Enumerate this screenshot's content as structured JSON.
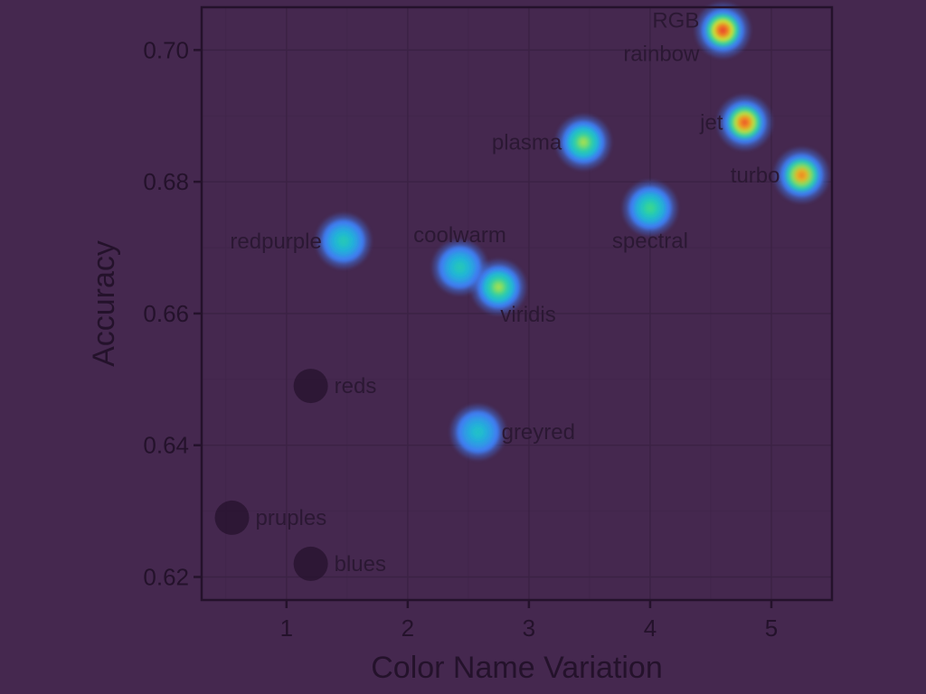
{
  "chart_data": {
    "type": "scatter",
    "xlabel": "Color Name Variation",
    "ylabel": "Accuracy",
    "xlim": [
      0.3,
      5.5
    ],
    "ylim": [
      0.6165,
      0.7065
    ],
    "x_ticks": [
      1,
      2,
      3,
      4,
      5
    ],
    "x_tick_labels": [
      "1",
      "2",
      "3",
      "4",
      "5"
    ],
    "y_ticks": [
      0.62,
      0.64,
      0.66,
      0.68,
      0.7
    ],
    "y_tick_labels": [
      "0.62",
      "0.64",
      "0.66",
      "0.68",
      "0.70"
    ],
    "grid": true,
    "points": [
      {
        "label": "RGB",
        "x": 4.6,
        "y": 0.703,
        "heat": 1.0,
        "label_side": "left-up"
      },
      {
        "label": "rainbow",
        "x": 4.6,
        "y": 0.703,
        "heat": 1.0,
        "label_side": "left-down"
      },
      {
        "label": "jet",
        "x": 4.78,
        "y": 0.689,
        "heat": 0.95,
        "label_side": "left"
      },
      {
        "label": "turbo",
        "x": 5.25,
        "y": 0.681,
        "heat": 0.85,
        "label_side": "left"
      },
      {
        "label": "plasma",
        "x": 3.45,
        "y": 0.686,
        "heat": 0.55,
        "label_side": "left"
      },
      {
        "label": "spectral",
        "x": 4.0,
        "y": 0.676,
        "heat": 0.42,
        "label_side": "below"
      },
      {
        "label": "redpurple",
        "x": 1.47,
        "y": 0.671,
        "heat": 0.3,
        "label_side": "left"
      },
      {
        "label": "coolwarm",
        "x": 2.43,
        "y": 0.667,
        "heat": 0.3,
        "label_side": "above"
      },
      {
        "label": "viridis",
        "x": 2.75,
        "y": 0.664,
        "heat": 0.55,
        "label_side": "below-right"
      },
      {
        "label": "reds",
        "x": 1.2,
        "y": 0.649,
        "heat": 0.0,
        "label_side": "right"
      },
      {
        "label": "greyred",
        "x": 2.58,
        "y": 0.642,
        "heat": 0.25,
        "label_side": "right"
      },
      {
        "label": "pruples",
        "x": 0.55,
        "y": 0.629,
        "heat": 0.0,
        "label_side": "right"
      },
      {
        "label": "blues",
        "x": 1.2,
        "y": 0.622,
        "heat": 0.0,
        "label_side": "right"
      }
    ]
  },
  "colors": {
    "background": "#45284f",
    "axis": "#24122b",
    "heat_stops": [
      "#3f7df2",
      "#1fb8d6",
      "#2fd59a",
      "#c9e23a",
      "#f0a21f",
      "#e9492d"
    ],
    "cold_point": "#2a1532",
    "label_text": "#2b1833"
  }
}
